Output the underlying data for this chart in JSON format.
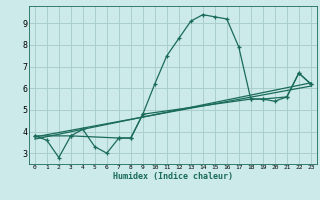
{
  "title": "",
  "xlabel": "Humidex (Indice chaleur)",
  "bg_color": "#cceaea",
  "grid_color": "#aacfcf",
  "line_color": "#1a6b5a",
  "xlim": [
    -0.5,
    23.5
  ],
  "ylim": [
    2.5,
    9.8
  ],
  "xticks": [
    0,
    1,
    2,
    3,
    4,
    5,
    6,
    7,
    8,
    9,
    10,
    11,
    12,
    13,
    14,
    15,
    16,
    17,
    18,
    19,
    20,
    21,
    22,
    23
  ],
  "yticks": [
    3,
    4,
    5,
    6,
    7,
    8,
    9
  ],
  "series1_x": [
    0,
    1,
    2,
    3,
    4,
    5,
    6,
    7,
    8,
    9,
    10,
    11,
    12,
    13,
    14,
    15,
    16,
    17,
    18,
    19,
    20,
    21,
    22,
    23
  ],
  "series1_y": [
    3.8,
    3.6,
    2.8,
    3.8,
    4.1,
    3.3,
    3.0,
    3.7,
    3.7,
    4.8,
    6.2,
    7.5,
    8.3,
    9.1,
    9.4,
    9.3,
    9.2,
    7.9,
    5.5,
    5.5,
    5.4,
    5.6,
    6.7,
    6.2
  ],
  "series2_x": [
    0,
    3,
    7,
    8,
    9,
    18,
    19,
    21,
    22,
    23
  ],
  "series2_y": [
    3.8,
    3.8,
    3.7,
    3.7,
    4.8,
    5.5,
    5.5,
    5.6,
    6.7,
    6.2
  ],
  "series3_x": [
    0,
    23
  ],
  "series3_y": [
    3.75,
    6.1
  ],
  "series4_x": [
    0,
    23
  ],
  "series4_y": [
    3.65,
    6.25
  ]
}
